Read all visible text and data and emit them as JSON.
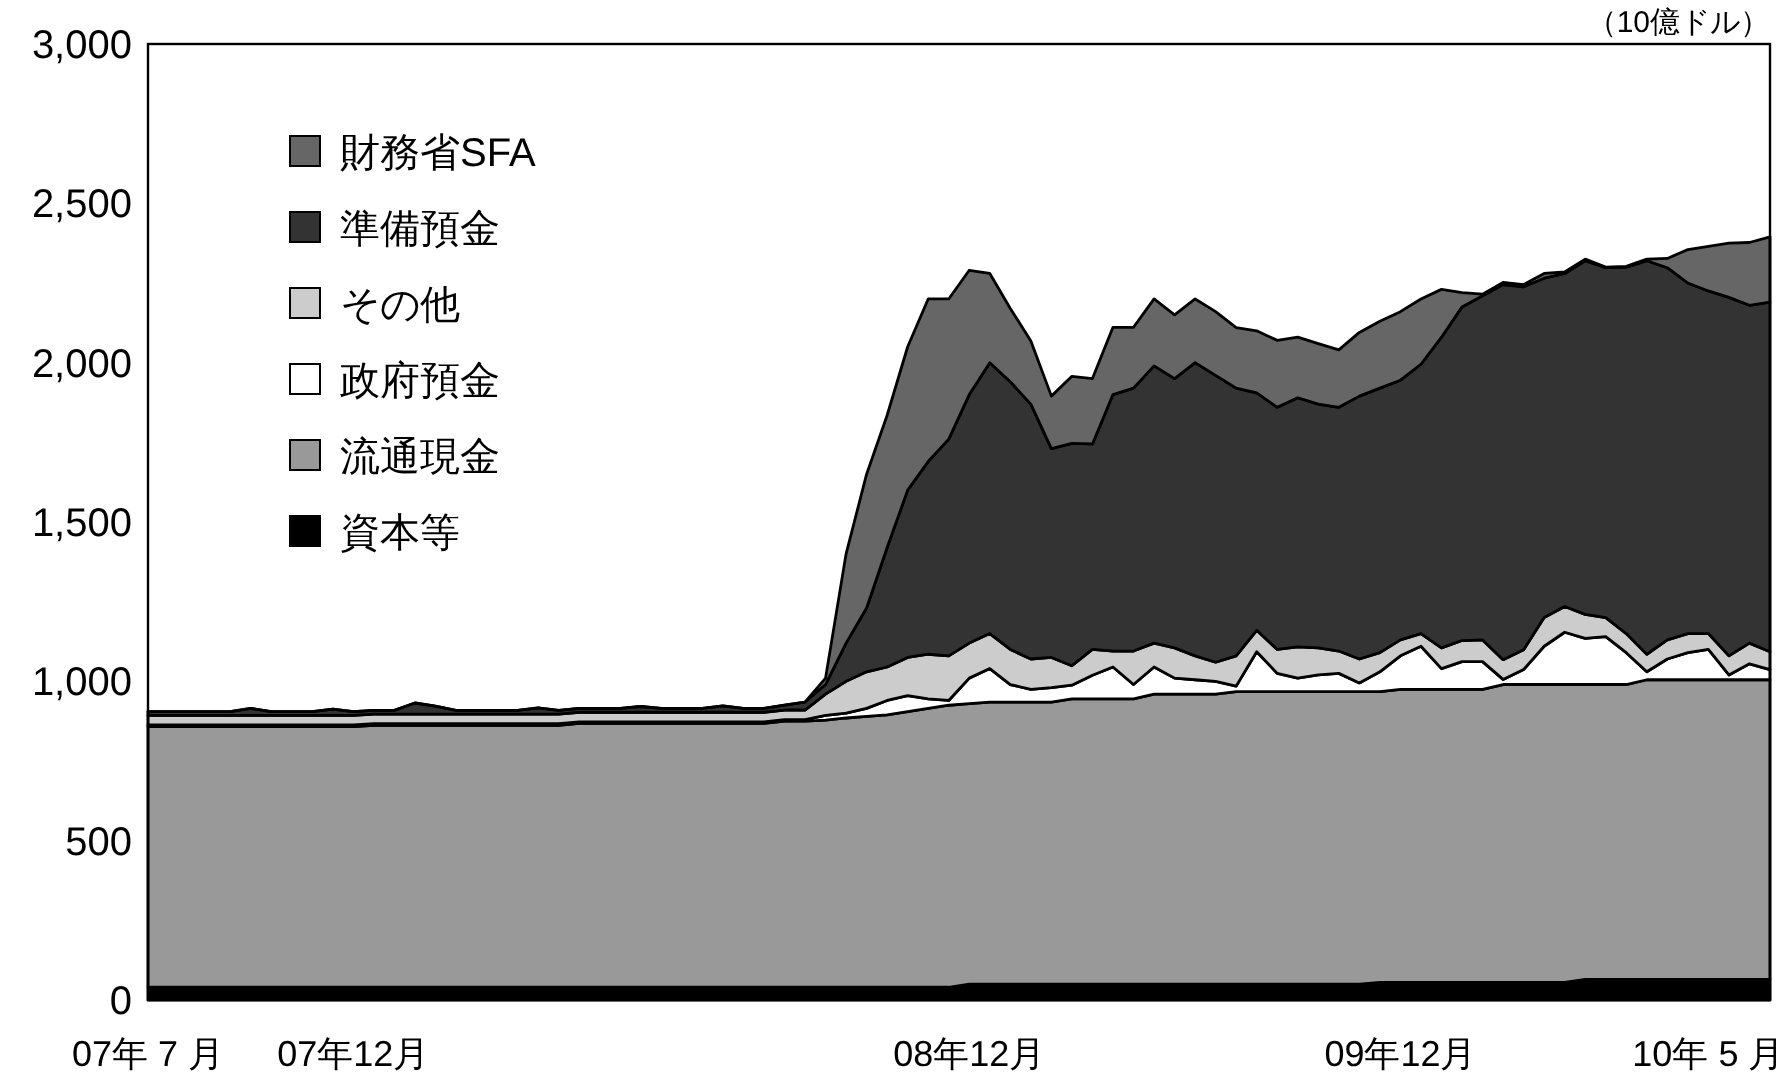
{
  "chart_data": {
    "type": "area",
    "stacked": true,
    "legend": "top left",
    "annotations": [
      "（10億ドル）"
    ],
    "categories": [
      "07年 7 月",
      null,
      null,
      null,
      null,
      null,
      null,
      null,
      null,
      null,
      "07年12月",
      null,
      null,
      null,
      null,
      null,
      null,
      null,
      null,
      null,
      null,
      null,
      null,
      null,
      null,
      null,
      null,
      null,
      null,
      null,
      null,
      null,
      null,
      null,
      null,
      null,
      null,
      null,
      null,
      null,
      "08年12月",
      null,
      null,
      null,
      null,
      null,
      null,
      null,
      null,
      null,
      null,
      null,
      null,
      null,
      null,
      null,
      null,
      null,
      null,
      null,
      null,
      "09年12月",
      null,
      null,
      null,
      null,
      null,
      null,
      null,
      null,
      null,
      null,
      null,
      null,
      null,
      null,
      "10年 5 月",
      null,
      null,
      null
    ],
    "ylim": [
      0,
      3000
    ],
    "yticks": [
      0,
      500,
      {
        "value": 1000,
        "label": "1,000"
      },
      {
        "value": 1500,
        "label": "1,500"
      },
      {
        "value": 2000,
        "label": "2,000"
      },
      {
        "value": 2500,
        "label": "2,500"
      },
      {
        "value": 3000,
        "label": "3,000"
      }
    ],
    "series": [
      {
        "name": "資本等",
        "color": "#000000",
        "values": [
          40,
          40,
          40,
          40,
          40,
          40,
          40,
          40,
          40,
          40,
          40,
          40,
          40,
          40,
          40,
          40,
          40,
          40,
          40,
          40,
          40,
          40,
          40,
          40,
          40,
          40,
          40,
          40,
          40,
          40,
          40,
          40,
          40,
          40,
          40,
          40,
          40,
          40,
          40,
          40,
          50,
          50,
          50,
          50,
          50,
          50,
          50,
          50,
          50,
          50,
          50,
          50,
          50,
          50,
          50,
          50,
          50,
          50,
          50,
          50,
          55,
          55,
          55,
          55,
          55,
          55,
          55,
          55,
          55,
          55,
          65,
          65,
          65,
          65,
          65,
          65,
          65,
          65,
          65,
          65
        ]
      },
      {
        "name": "流通現金",
        "color": "#999999",
        "values": [
          818,
          818,
          818,
          818,
          818,
          818,
          818,
          818,
          818,
          818,
          818,
          822,
          822,
          822,
          822,
          822,
          822,
          822,
          822,
          822,
          822,
          828,
          828,
          828,
          828,
          828,
          828,
          828,
          828,
          828,
          828,
          835,
          835,
          838,
          845,
          850,
          855,
          865,
          875,
          885,
          880,
          885,
          885,
          885,
          885,
          895,
          895,
          895,
          895,
          910,
          910,
          910,
          910,
          918,
          918,
          918,
          918,
          918,
          918,
          918,
          913,
          920,
          920,
          920,
          920,
          920,
          935,
          935,
          935,
          935,
          925,
          925,
          925,
          940,
          940,
          940,
          940,
          940,
          940,
          940
        ]
      },
      {
        "name": "政府預金",
        "color": "#ffffff",
        "values": [
          5,
          5,
          5,
          5,
          5,
          5,
          5,
          5,
          5,
          5,
          5,
          5,
          5,
          5,
          5,
          5,
          5,
          5,
          5,
          5,
          5,
          5,
          5,
          5,
          5,
          5,
          5,
          5,
          5,
          5,
          5,
          5,
          5,
          15,
          15,
          25,
          45,
          50,
          30,
          15,
          80,
          105,
          55,
          40,
          45,
          43,
          74,
          100,
          45,
          85,
          50,
          45,
          40,
          17,
          125,
          57,
          42,
          52,
          57,
          27,
          62,
          105,
          135,
          65,
          87,
          87,
          16,
          47,
          120,
          164,
          145,
          150,
          100,
          25,
          65,
          85,
          95,
          15,
          50,
          32
        ]
      },
      {
        "name": "その他",
        "color": "#cccccc",
        "values": [
          30,
          30,
          30,
          30,
          30,
          30,
          30,
          30,
          30,
          30,
          30,
          30,
          30,
          30,
          30,
          30,
          30,
          30,
          30,
          30,
          30,
          30,
          30,
          30,
          30,
          30,
          30,
          30,
          30,
          30,
          30,
          30,
          30,
          67,
          100,
          115,
          105,
          120,
          140,
          140,
          110,
          110,
          110,
          95,
          95,
          61,
          81,
          50,
          105,
          75,
          95,
          75,
          60,
          95,
          67,
          75,
          98,
          85,
          70,
          75,
          60,
          50,
          40,
          65,
          66,
          68,
          62,
          62,
          90,
          81,
          75,
          60,
          60,
          55,
          60,
          60,
          50,
          60,
          65,
          56
        ]
      },
      {
        "name": "準備預金",
        "color": "#333333",
        "values": [
          12,
          12,
          12,
          12,
          12,
          22,
          12,
          12,
          12,
          20,
          12,
          12,
          12,
          35,
          25,
          12,
          12,
          12,
          12,
          20,
          12,
          12,
          12,
          12,
          18,
          12,
          12,
          12,
          20,
          12,
          12,
          15,
          25,
          30,
          120,
          200,
          375,
          525,
          605,
          680,
          780,
          850,
          840,
          800,
          655,
          698,
          645,
          805,
          825,
          870,
          845,
          920,
          900,
          840,
          745,
          760,
          782,
          765,
          765,
          825,
          830,
          815,
          845,
          975,
          1047,
          1080,
          1177,
          1139,
          1065,
          1045,
          1110,
          1098,
          1150,
          1235,
          1168,
          1100,
          1075,
          1125,
          1060,
          1097
        ]
      },
      {
        "name": "財務省SFA",
        "color": "#666666",
        "values": [
          0,
          0,
          0,
          0,
          0,
          0,
          0,
          0,
          0,
          0,
          0,
          0,
          0,
          0,
          0,
          0,
          0,
          0,
          0,
          0,
          0,
          0,
          0,
          0,
          0,
          0,
          0,
          0,
          0,
          0,
          0,
          0,
          0,
          20,
          280,
          420,
          415,
          450,
          510,
          440,
          390,
          280,
          230,
          198,
          165,
          210,
          205,
          211,
          191,
          210,
          200,
          200,
          200,
          190,
          195,
          210,
          190,
          190,
          180,
          200,
          210,
          215,
          205,
          150,
          45,
          5,
          7,
          7,
          15,
          5,
          5,
          2,
          2,
          5,
          29,
          105,
          140,
          170,
          197,
          205
        ]
      }
    ]
  }
}
